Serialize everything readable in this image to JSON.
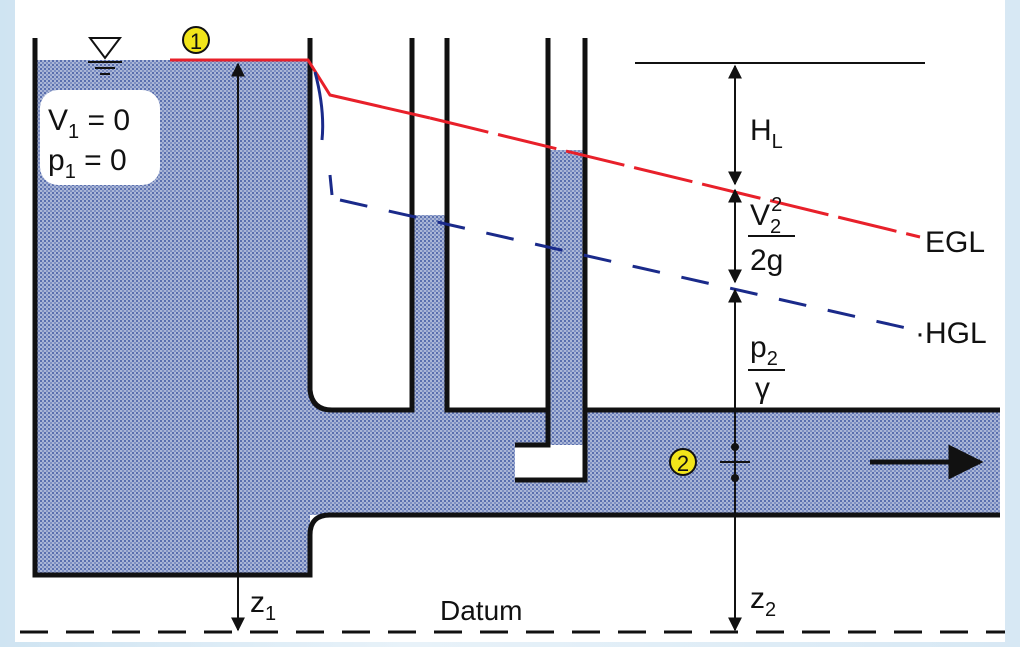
{
  "markers": {
    "point1": "1",
    "point2": "2"
  },
  "tank_labels": {
    "v1": {
      "base": "V",
      "sub": "1",
      "rest": " = 0"
    },
    "p1": {
      "base": "p",
      "sub": "1",
      "rest": " = 0"
    }
  },
  "head_labels": {
    "head_loss": {
      "base": "H",
      "sub": "L"
    },
    "velocity_head": {
      "num_base": "V",
      "num_sub": "2",
      "num_sup": "2",
      "den": "2g"
    },
    "pressure_head": {
      "num_base": "p",
      "num_sub": "2",
      "den": "γ"
    }
  },
  "lines": {
    "egl": "EGL",
    "hgl": "·HGL"
  },
  "elevations": {
    "z1": {
      "base": "z",
      "sub": "1"
    },
    "z2": {
      "base": "z",
      "sub": "2"
    },
    "datum": "Datum"
  }
}
